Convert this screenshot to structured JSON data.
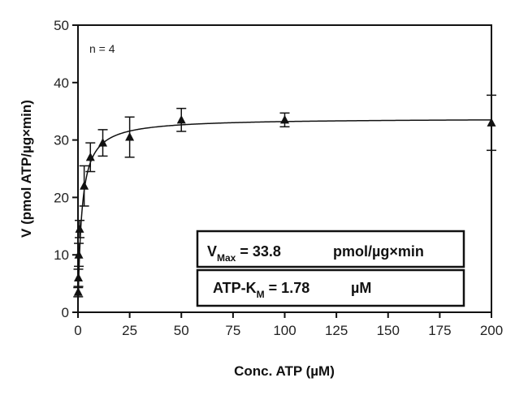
{
  "chart_data": {
    "type": "scatter",
    "xlabel": "Conc. ATP (µM)",
    "ylabel": "V (pmol ATP/µg×min)",
    "xlim": [
      0,
      200
    ],
    "ylim": [
      0,
      50
    ],
    "xticks": [
      0,
      25,
      50,
      75,
      100,
      125,
      150,
      175,
      200
    ],
    "yticks": [
      0,
      10,
      20,
      30,
      40,
      50
    ],
    "grid": false,
    "annotation": "n = 4",
    "series": [
      {
        "marker": "triangle",
        "color": "#111111",
        "points": [
          {
            "x": 0.1,
            "y": 3.5,
            "err": 0.8
          },
          {
            "x": 0.2,
            "y": 6.0,
            "err": 1.5
          },
          {
            "x": 0.4,
            "y": 10.0,
            "err": 2.0
          },
          {
            "x": 0.8,
            "y": 14.5,
            "err": 1.5
          },
          {
            "x": 3.0,
            "y": 22.0,
            "err": 3.5
          },
          {
            "x": 6.0,
            "y": 27.0,
            "err": 2.5
          },
          {
            "x": 12.0,
            "y": 29.5,
            "err": 2.3
          },
          {
            "x": 25.0,
            "y": 30.5,
            "err": 3.5
          },
          {
            "x": 50.0,
            "y": 33.5,
            "err": 2.0
          },
          {
            "x": 100.0,
            "y": 33.5,
            "err": 1.2
          },
          {
            "x": 200.0,
            "y": 33.0,
            "err": 4.8
          }
        ]
      }
    ],
    "fit": {
      "model": "michaelis-menten",
      "vmax": 33.8,
      "km": 1.78
    },
    "boxes": {
      "vmax": {
        "label": "V",
        "sub": "Max",
        "eq": " = 33.8",
        "unit": "pmol/µg×min"
      },
      "km": {
        "label": "ATP-K",
        "sub": "M",
        "eq": " = 1.78",
        "unit": "µM"
      }
    }
  }
}
